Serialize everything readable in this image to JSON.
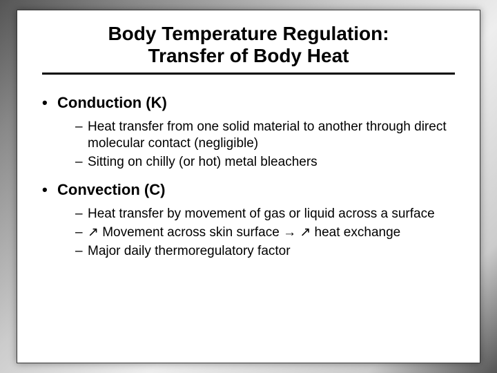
{
  "slide": {
    "title_line1": "Body Temperature Regulation:",
    "title_line2": "Transfer of Body Heat",
    "sections": [
      {
        "heading": "Conduction (K)",
        "points": [
          "Heat transfer from one solid material to another through direct molecular contact (negligible)",
          "Sitting on chilly (or hot) metal bleachers"
        ]
      },
      {
        "heading": "Convection (C)",
        "points": [
          "Heat transfer by movement of gas or liquid across a surface",
          "↗ Movement across skin surface → ↗ heat exchange",
          "Major daily thermoregulatory factor"
        ]
      }
    ]
  },
  "styling": {
    "background_gradient": [
      "#555555",
      "#888888",
      "#cccccc",
      "#eeeeee",
      "#cccccc",
      "#555555"
    ],
    "slide_background": "#ffffff",
    "slide_border": "#333333",
    "text_color": "#000000",
    "title_fontsize": 28,
    "title_fontweight": "bold",
    "title_underline_width": 3,
    "lvl1_fontsize": 22,
    "lvl1_fontweight": "bold",
    "lvl1_bullet": "•",
    "lvl2_fontsize": 19,
    "lvl2_fontweight": "normal",
    "lvl2_bullet": "–",
    "font_family": "Arial"
  }
}
